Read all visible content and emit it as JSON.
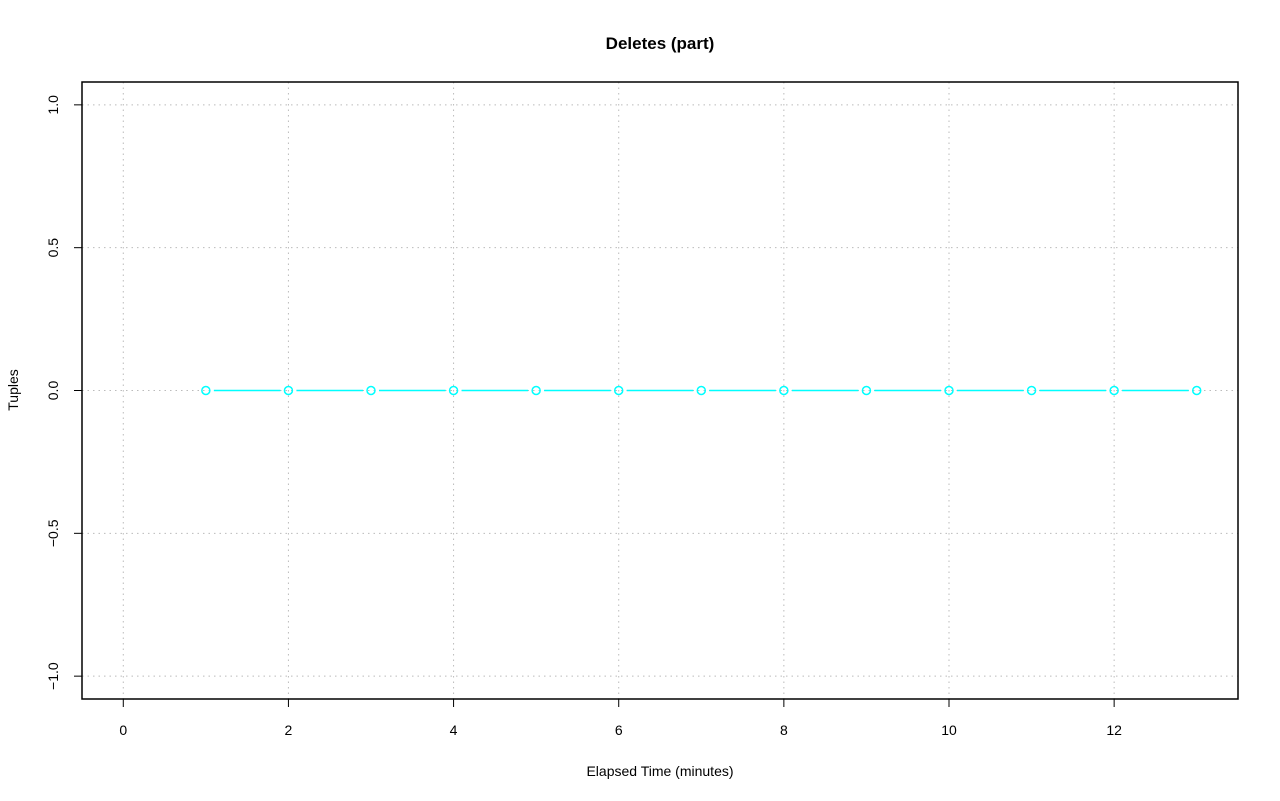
{
  "chart_data": {
    "type": "line",
    "title": "Deletes (part)",
    "xlabel": "Elapsed Time (minutes)",
    "ylabel": "Tuples",
    "xlim": [
      -0.5,
      13.5
    ],
    "ylim": [
      -1.08,
      1.08
    ],
    "x_ticks": [
      0,
      2,
      4,
      6,
      8,
      10,
      12
    ],
    "x_tick_labels": [
      "0",
      "2",
      "4",
      "6",
      "8",
      "10",
      "12"
    ],
    "y_ticks": [
      -1.0,
      -0.5,
      0.0,
      0.5,
      1.0
    ],
    "y_tick_labels": [
      "−1.0",
      "−0.5",
      "0.0",
      "0.5",
      "1.0"
    ],
    "grid": true,
    "series": [
      {
        "color": "#00ffff",
        "marker": "open-circle",
        "x": [
          1,
          2,
          3,
          4,
          5,
          6,
          7,
          8,
          9,
          10,
          11,
          12,
          13
        ],
        "y": [
          0,
          0,
          0,
          0,
          0,
          0,
          0,
          0,
          0,
          0,
          0,
          0,
          0
        ]
      }
    ]
  }
}
